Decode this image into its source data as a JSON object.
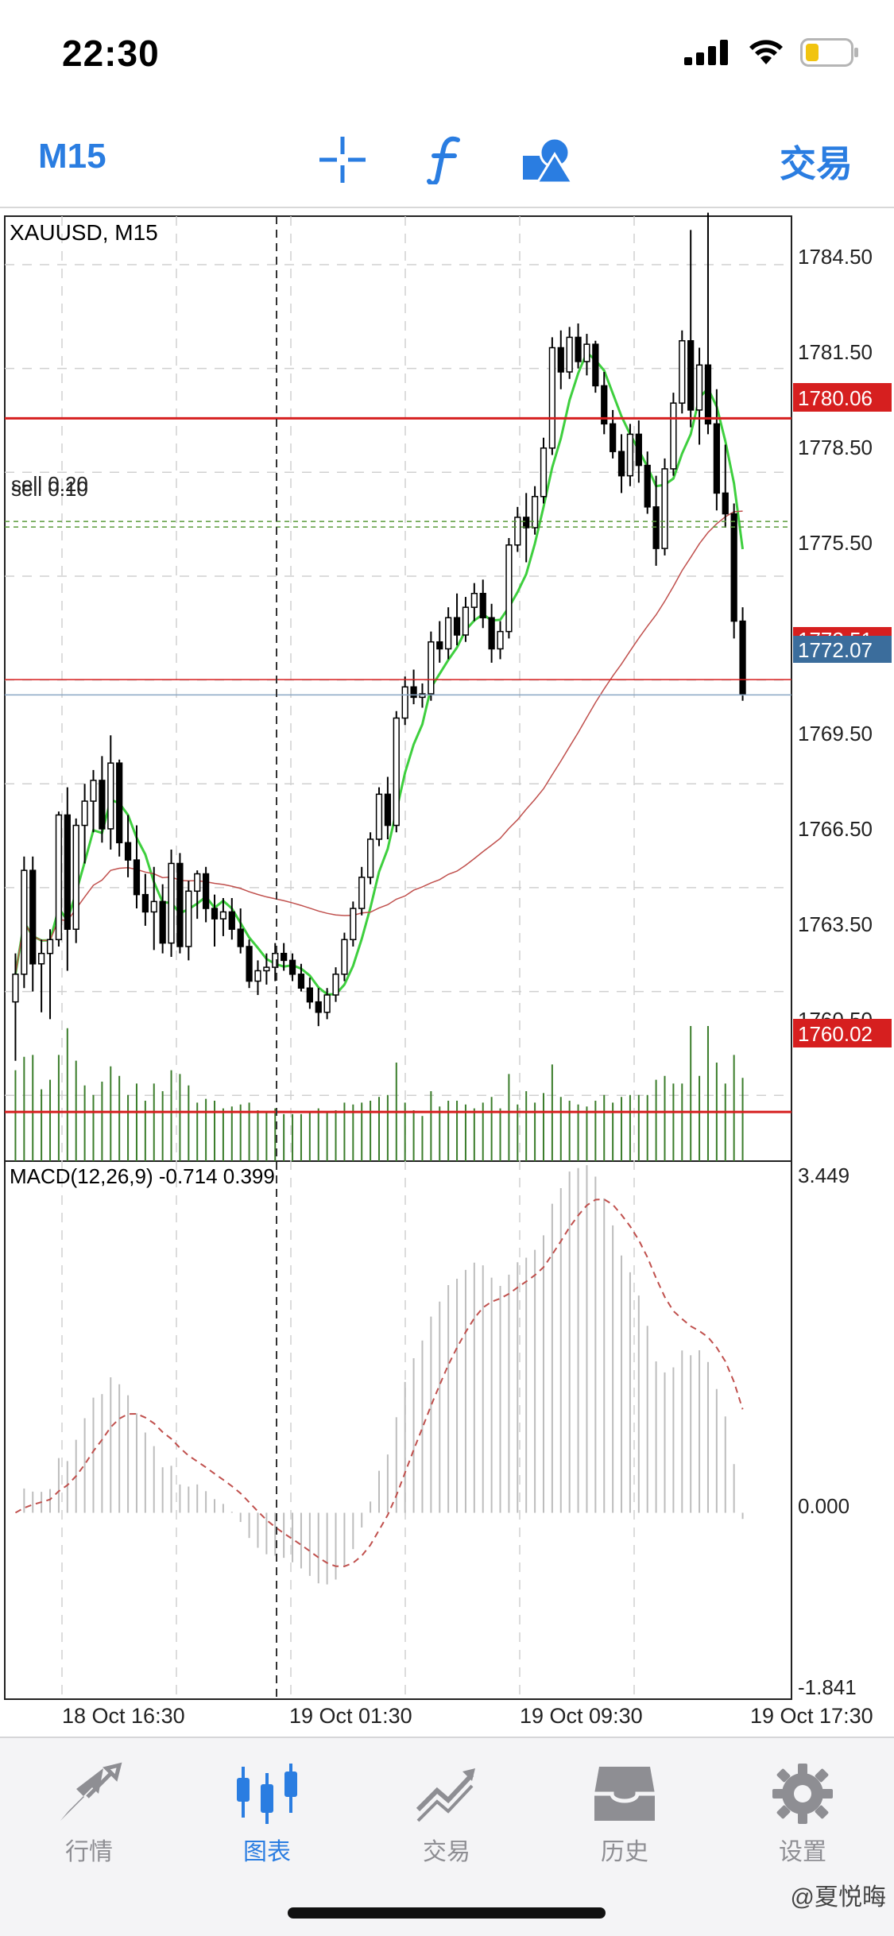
{
  "status_bar": {
    "time": "22:30"
  },
  "toolbar": {
    "timeframe": "M15",
    "crosshair_icon": "crosshair-icon",
    "indicator_icon": "function-icon",
    "objects_icon": "shapes-icon",
    "trade_label": "交易"
  },
  "chart": {
    "symbol_label": "XAUUSD, M15",
    "order_label_1": "sell 0.20",
    "order_label_2": "sell 0.10",
    "price_axis": [
      "1784.50",
      "1781.50",
      "1778.50",
      "1775.50",
      "1769.50",
      "1766.50",
      "1763.50",
      "1760.50"
    ],
    "price_tags": {
      "upper_line": "1780.06",
      "ask_line": "1772.51",
      "bid_line": "1772.07",
      "lower_line": "1760.02"
    },
    "macd_label": "MACD(12,26,9) -0.714 0.399",
    "macd_axis": {
      "top": "3.449",
      "zero": "0.000",
      "bottom": "-1.841"
    },
    "time_axis": [
      "18 Oct 16:30",
      "19 Oct 01:30",
      "19 Oct 09:30",
      "19 Oct 17:30"
    ],
    "colors": {
      "up_candle": "#ffffff",
      "down_candle": "#000000",
      "ma_fast": "#3ecf3e",
      "ma_slow": "#c0504d",
      "level_line": "#d61f1f",
      "bid_tag": "#3b6d9c",
      "grid": "#d0d0d0"
    }
  },
  "chart_data": {
    "type": "candlestick",
    "symbol": "XAUUSD",
    "timeframe": "M15",
    "ylim": [
      1758.6,
      1785.9
    ],
    "x": [
      "18 Oct 16:30",
      "19 Oct 01:30",
      "19 Oct 09:30",
      "19 Oct 17:30"
    ],
    "ohlc": [
      [
        1763.2,
        1764.6,
        1761.5,
        1764.0
      ],
      [
        1764.0,
        1767.4,
        1763.6,
        1767.0
      ],
      [
        1767.0,
        1767.4,
        1763.5,
        1764.3
      ],
      [
        1764.3,
        1765.0,
        1762.9,
        1764.6
      ],
      [
        1764.6,
        1765.3,
        1762.7,
        1765.0
      ],
      [
        1765.0,
        1768.7,
        1764.8,
        1768.6
      ],
      [
        1768.6,
        1769.4,
        1764.1,
        1765.3
      ],
      [
        1765.3,
        1768.5,
        1764.9,
        1768.3
      ],
      [
        1768.3,
        1769.5,
        1767.2,
        1769.0
      ],
      [
        1769.0,
        1769.9,
        1768.1,
        1769.6
      ],
      [
        1769.6,
        1770.3,
        1767.8,
        1768.2
      ],
      [
        1768.2,
        1770.9,
        1767.6,
        1770.1
      ],
      [
        1770.1,
        1770.2,
        1767.4,
        1767.8
      ],
      [
        1767.8,
        1768.6,
        1766.8,
        1767.3
      ],
      [
        1767.3,
        1768.3,
        1765.9,
        1766.3
      ],
      [
        1766.3,
        1766.9,
        1765.4,
        1765.8
      ],
      [
        1765.8,
        1767.1,
        1764.7,
        1766.1
      ],
      [
        1766.1,
        1766.6,
        1764.6,
        1764.9
      ],
      [
        1764.9,
        1767.6,
        1764.5,
        1767.2
      ],
      [
        1767.2,
        1767.5,
        1764.6,
        1764.8
      ],
      [
        1764.8,
        1766.7,
        1764.4,
        1766.4
      ],
      [
        1766.4,
        1767.0,
        1765.6,
        1766.9
      ],
      [
        1766.9,
        1767.1,
        1765.5,
        1765.9
      ],
      [
        1765.9,
        1766.3,
        1764.8,
        1765.6
      ],
      [
        1765.6,
        1766.2,
        1765.1,
        1765.8
      ],
      [
        1765.8,
        1766.2,
        1765.0,
        1765.3
      ],
      [
        1765.3,
        1765.9,
        1764.6,
        1764.8
      ],
      [
        1764.8,
        1765.0,
        1763.6,
        1763.8
      ],
      [
        1763.8,
        1764.4,
        1763.4,
        1764.1
      ],
      [
        1764.1,
        1764.6,
        1763.7,
        1764.2
      ],
      [
        1764.2,
        1764.9,
        1763.8,
        1764.6
      ],
      [
        1764.6,
        1764.9,
        1764.1,
        1764.4
      ],
      [
        1764.4,
        1764.6,
        1763.8,
        1764.0
      ],
      [
        1764.0,
        1764.3,
        1763.5,
        1763.6
      ],
      [
        1763.6,
        1763.9,
        1763.0,
        1763.2
      ],
      [
        1763.2,
        1763.6,
        1762.5,
        1762.9
      ],
      [
        1762.9,
        1763.6,
        1762.7,
        1763.4
      ],
      [
        1763.4,
        1764.2,
        1763.2,
        1764.0
      ],
      [
        1764.0,
        1765.2,
        1763.8,
        1765.0
      ],
      [
        1765.0,
        1766.1,
        1764.8,
        1765.9
      ],
      [
        1765.9,
        1767.1,
        1765.7,
        1766.8
      ],
      [
        1766.8,
        1768.1,
        1766.6,
        1767.9
      ],
      [
        1767.9,
        1769.4,
        1767.7,
        1769.2
      ],
      [
        1769.2,
        1769.7,
        1767.9,
        1768.3
      ],
      [
        1768.3,
        1771.6,
        1768.1,
        1771.4
      ],
      [
        1771.4,
        1772.6,
        1771.2,
        1772.3
      ],
      [
        1772.3,
        1772.8,
        1771.8,
        1772.0
      ],
      [
        1772.0,
        1772.4,
        1771.7,
        1772.1
      ],
      [
        1772.1,
        1773.9,
        1771.9,
        1773.6
      ],
      [
        1773.6,
        1774.2,
        1773.0,
        1773.4
      ],
      [
        1773.4,
        1774.6,
        1773.1,
        1774.3
      ],
      [
        1774.3,
        1775.0,
        1773.5,
        1773.8
      ],
      [
        1773.8,
        1774.9,
        1773.6,
        1774.6
      ],
      [
        1774.6,
        1775.3,
        1774.2,
        1775.0
      ],
      [
        1775.0,
        1775.4,
        1774.0,
        1774.3
      ],
      [
        1774.3,
        1774.7,
        1773.0,
        1773.4
      ],
      [
        1773.4,
        1774.2,
        1773.1,
        1773.9
      ],
      [
        1773.9,
        1776.6,
        1773.7,
        1776.4
      ],
      [
        1776.4,
        1777.5,
        1776.2,
        1777.2
      ],
      [
        1777.2,
        1777.9,
        1775.9,
        1776.9
      ],
      [
        1776.9,
        1778.1,
        1776.7,
        1777.8
      ],
      [
        1777.8,
        1779.5,
        1777.6,
        1779.2
      ],
      [
        1779.2,
        1782.4,
        1779.0,
        1782.1
      ],
      [
        1782.1,
        1782.6,
        1780.9,
        1781.4
      ],
      [
        1781.4,
        1782.7,
        1781.2,
        1782.4
      ],
      [
        1782.4,
        1782.8,
        1781.5,
        1781.7
      ],
      [
        1781.7,
        1782.5,
        1781.3,
        1782.2
      ],
      [
        1782.2,
        1782.3,
        1780.8,
        1781.0
      ],
      [
        1781.0,
        1781.4,
        1779.6,
        1779.9
      ],
      [
        1779.9,
        1780.3,
        1778.9,
        1779.1
      ],
      [
        1779.1,
        1779.6,
        1777.9,
        1778.4
      ],
      [
        1778.4,
        1779.9,
        1778.1,
        1779.6
      ],
      [
        1779.6,
        1780.0,
        1778.2,
        1778.7
      ],
      [
        1778.7,
        1779.1,
        1777.3,
        1777.5
      ],
      [
        1777.5,
        1778.4,
        1775.8,
        1776.3
      ],
      [
        1776.3,
        1778.9,
        1776.1,
        1778.6
      ],
      [
        1778.6,
        1780.8,
        1778.4,
        1780.5
      ],
      [
        1780.5,
        1782.6,
        1780.2,
        1782.3
      ],
      [
        1782.3,
        1785.5,
        1779.8,
        1780.3
      ],
      [
        1780.3,
        1782.1,
        1779.3,
        1781.6
      ],
      [
        1781.6,
        1786.0,
        1779.6,
        1779.9
      ],
      [
        1779.9,
        1780.9,
        1777.4,
        1777.9
      ],
      [
        1777.9,
        1779.3,
        1776.9,
        1777.3
      ],
      [
        1777.3,
        1777.6,
        1773.7,
        1774.2
      ],
      [
        1774.2,
        1774.6,
        1771.9,
        1772.1
      ]
    ],
    "levels": [
      {
        "name": "1780.06",
        "value": 1780.06
      },
      {
        "name": "1772.51",
        "value": 1772.51
      },
      {
        "name": "1772.07",
        "value": 1772.07
      },
      {
        "name": "1760.02",
        "value": 1760.02
      }
    ],
    "macd": {
      "label": "MACD(12,26,9)",
      "macd_value": -0.714,
      "signal_value": 0.399,
      "ylim": [
        -1.841,
        3.449
      ]
    }
  },
  "tabbar": {
    "items": [
      {
        "label": "行情",
        "icon": "quotes-icon"
      },
      {
        "label": "图表",
        "icon": "chart-icon"
      },
      {
        "label": "交易",
        "icon": "trade-icon"
      },
      {
        "label": "历史",
        "icon": "history-icon"
      },
      {
        "label": "设置",
        "icon": "settings-icon"
      }
    ],
    "active_index": 1
  },
  "watermark": "@夏悦晦"
}
